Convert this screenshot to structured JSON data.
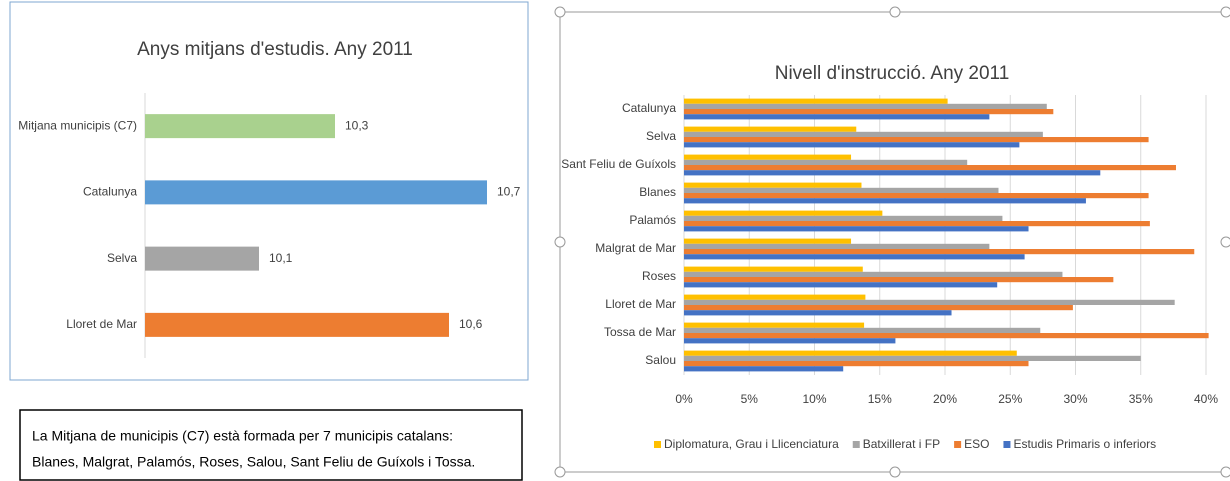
{
  "chart_data": [
    {
      "type": "bar",
      "title": "Anys mitjans d'estudis. Any 2011",
      "categories": [
        "Mitjana municipis (C7)",
        "Catalunya",
        "Selva",
        "Lloret de Mar"
      ],
      "values": [
        10.3,
        10.7,
        10.1,
        10.6
      ],
      "value_labels": [
        "10,3",
        "10,7",
        "10,1",
        "10,6"
      ],
      "colors": [
        "#a9d18e",
        "#5b9bd5",
        "#a5a5a5",
        "#ed7d31"
      ],
      "xlim": [
        9.8,
        10.8
      ]
    },
    {
      "type": "grouped-bar",
      "title": "Nivell d'instrucció. Any 2011",
      "categories": [
        "Catalunya",
        "Selva",
        "Sant Feliu de Guíxols",
        "Blanes",
        "Palamós",
        "Malgrat de Mar",
        "Roses",
        "Lloret de Mar",
        "Tossa de Mar",
        "Salou"
      ],
      "series": [
        {
          "name": "Diplomatura, Grau i Llicenciatura",
          "color": "#ffc000",
          "values": [
            20.2,
            13.2,
            12.8,
            13.6,
            15.2,
            12.8,
            13.7,
            13.9,
            13.8,
            25.5
          ]
        },
        {
          "name": "Batxillerat i FP",
          "color": "#a5a5a5",
          "values": [
            27.8,
            27.5,
            21.7,
            24.1,
            24.4,
            23.4,
            29.0,
            37.6,
            27.3,
            35.0
          ]
        },
        {
          "name": "ESO",
          "color": "#ed7d31",
          "values": [
            28.3,
            35.6,
            37.7,
            35.6,
            35.7,
            39.1,
            32.9,
            29.8,
            40.2,
            26.4
          ]
        },
        {
          "name": "Estudis Primaris o inferiors",
          "color": "#4472c4",
          "values": [
            23.4,
            25.7,
            31.9,
            30.8,
            26.4,
            26.1,
            24.0,
            20.5,
            16.2,
            12.2
          ]
        }
      ],
      "xlim": [
        0,
        40
      ],
      "xticks": [
        {
          "value": 0,
          "label": "0%"
        },
        {
          "value": 5,
          "label": "5%"
        },
        {
          "value": 10,
          "label": "10%"
        },
        {
          "value": 15,
          "label": "15%"
        },
        {
          "value": 20,
          "label": "20%"
        },
        {
          "value": 25,
          "label": "25%"
        },
        {
          "value": 30,
          "label": "30%"
        },
        {
          "value": 35,
          "label": "35%"
        },
        {
          "value": 40,
          "label": "40%"
        }
      ],
      "grid": true,
      "legend": "bottom"
    }
  ],
  "note": {
    "lines": [
      "La Mitjana de municipis (C7) està formada per 7 municipis catalans:",
      "Blanes, Malgrat, Palamós, Roses, Salou, Sant Feliu de Guíxols i Tossa."
    ]
  }
}
